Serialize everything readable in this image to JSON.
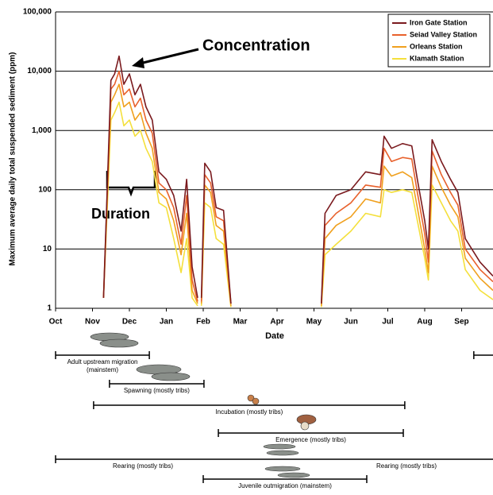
{
  "chart_data": {
    "type": "line",
    "y_label": "Maximum average daily total suspended sediment (ppm)",
    "x_label": "Date",
    "log_y": true,
    "grid": true,
    "legend": "top-right",
    "xlim": [
      0,
      11.85
    ],
    "xticks": [
      {
        "value": 0,
        "label": "Oct"
      },
      {
        "value": 1,
        "label": "Nov"
      },
      {
        "value": 2,
        "label": "Dec"
      },
      {
        "value": 3,
        "label": "Jan"
      },
      {
        "value": 4,
        "label": "Feb"
      },
      {
        "value": 5,
        "label": "Mar"
      },
      {
        "value": 6,
        "label": "Apr"
      },
      {
        "value": 7,
        "label": "May"
      },
      {
        "value": 8,
        "label": "Jun"
      },
      {
        "value": 9,
        "label": "Jul"
      },
      {
        "value": 10,
        "label": "Aug"
      },
      {
        "value": 11,
        "label": "Sep"
      }
    ],
    "ylim": [
      1,
      100000
    ],
    "yticks": [
      1,
      10,
      100,
      {
        "value": 1000,
        "label": "1,000"
      },
      {
        "value": 10000,
        "label": "10,000"
      },
      {
        "value": 100000,
        "label": "100,000"
      }
    ],
    "x": [
      1.3,
      1.5,
      1.6,
      1.72,
      1.85,
      2.0,
      2.15,
      2.3,
      2.45,
      2.62,
      2.8,
      3.0,
      3.2,
      3.4,
      3.55,
      3.7,
      3.85,
      3.9,
      3.95,
      4.04,
      4.2,
      4.35,
      4.55,
      4.75,
      4.8,
      7.2,
      7.3,
      7.6,
      8.0,
      8.4,
      8.8,
      8.9,
      9.1,
      9.4,
      9.65,
      9.8,
      10.0,
      10.1,
      10.2,
      10.45,
      10.7,
      10.9,
      11.1,
      11.5,
      11.85
    ],
    "series": [
      {
        "name": "Iron Gate Station",
        "color": "#7a1a1e",
        "values": [
          1.5,
          7000,
          9000,
          18000,
          6000,
          9000,
          4000,
          6000,
          2500,
          1500,
          200,
          150,
          80,
          20,
          150,
          5,
          1.5,
          null,
          1.5,
          280,
          200,
          50,
          45,
          1.2,
          null,
          1.2,
          40,
          80,
          100,
          200,
          180,
          800,
          500,
          600,
          550,
          150,
          30,
          10,
          700,
          300,
          150,
          90,
          15,
          6,
          3.5
        ]
      },
      {
        "name": "Seiad Valley Station",
        "color": "#e8612c",
        "values": [
          1.5,
          5000,
          6000,
          10000,
          4000,
          5000,
          2500,
          3500,
          1500,
          900,
          130,
          100,
          50,
          12,
          80,
          3,
          1.3,
          null,
          1.3,
          180,
          130,
          35,
          30,
          1.2,
          null,
          1.2,
          25,
          40,
          60,
          120,
          110,
          500,
          300,
          350,
          330,
          90,
          18,
          6,
          450,
          180,
          90,
          55,
          10,
          4.5,
          2.8
        ]
      },
      {
        "name": "Orleans Station",
        "color": "#f0a01e",
        "values": [
          1.5,
          3000,
          4000,
          6000,
          2500,
          3000,
          1500,
          2000,
          900,
          500,
          90,
          70,
          30,
          8,
          40,
          2,
          1.2,
          null,
          1.2,
          120,
          90,
          25,
          20,
          1.1,
          null,
          1.1,
          15,
          25,
          35,
          70,
          60,
          250,
          170,
          200,
          160,
          50,
          10,
          4,
          250,
          110,
          55,
          35,
          7,
          3.2,
          2
        ]
      },
      {
        "name": "Klamath Station",
        "color": "#f4e03c",
        "values": [
          1.5,
          1500,
          2000,
          3000,
          1200,
          1500,
          800,
          1000,
          500,
          300,
          60,
          50,
          15,
          4,
          15,
          1.5,
          1.1,
          null,
          1.1,
          60,
          50,
          15,
          12,
          1.05,
          null,
          1.05,
          8,
          12,
          20,
          40,
          35,
          100,
          90,
          100,
          90,
          30,
          7,
          3,
          120,
          60,
          30,
          20,
          4.5,
          2,
          1.4
        ]
      }
    ],
    "annotations": [
      "Concentration",
      "Duration"
    ]
  },
  "life_stages": [
    {
      "label_lines": [
        "Adult upstream migration",
        "(mainstem)"
      ],
      "ranges": [
        [
          0,
          2.54
        ],
        [
          11.33,
          11.85
        ]
      ]
    },
    {
      "label_lines": [
        "Spawning (mostly tribs)"
      ],
      "ranges": [
        [
          1.46,
          4.02
        ]
      ]
    },
    {
      "label_lines": [
        "Incubation (mostly tribs)"
      ],
      "ranges": [
        [
          1.03,
          9.46
        ]
      ]
    },
    {
      "label_lines": [
        "Emergence (mostly tribs)"
      ],
      "ranges": [
        [
          4.41,
          9.42
        ]
      ]
    },
    {
      "label_lines": [
        "Rearing (mostly tribs)"
      ],
      "ranges": [
        [
          0,
          11.85
        ]
      ]
    },
    {
      "label_lines": [
        "Juvenile outmigration (mainstem)"
      ],
      "ranges": [
        [
          4.0,
          8.43
        ]
      ]
    }
  ]
}
